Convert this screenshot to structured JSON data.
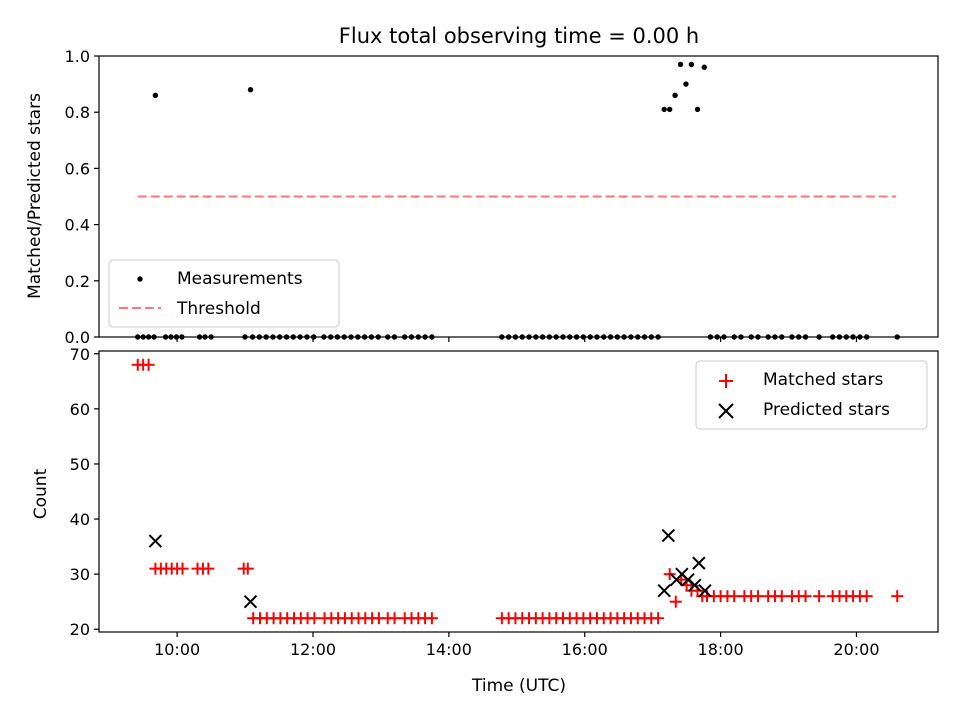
{
  "chart_data": [
    {
      "type": "scatter",
      "title": "Flux total observing time = 0.00 h",
      "xlabel": "",
      "ylabel": "Matched/Predicted stars",
      "ylim": [
        0.0,
        1.0
      ],
      "yticks": [
        0.0,
        0.2,
        0.4,
        0.6,
        0.8,
        1.0
      ],
      "ytick_labels": [
        "0.0",
        "0.2",
        "0.4",
        "0.6",
        "0.8",
        "1.0"
      ],
      "xlim_hours": [
        8.85,
        21.2
      ],
      "legend_position": "lower-left",
      "series": [
        {
          "name": "Measurements",
          "style": "dot",
          "color": "#000000",
          "points": [
            [
              9.68,
              0.86
            ],
            [
              11.08,
              0.88
            ],
            [
              17.17,
              0.81
            ],
            [
              17.25,
              0.81
            ],
            [
              17.33,
              0.86
            ],
            [
              17.41,
              0.97
            ],
            [
              17.49,
              0.9
            ],
            [
              17.57,
              0.97
            ],
            [
              17.66,
              0.81
            ],
            [
              17.76,
              0.96
            ]
          ],
          "zero_times": [
            9.42,
            9.5,
            9.58,
            9.66,
            9.83,
            9.91,
            9.99,
            10.07,
            10.33,
            10.41,
            10.5,
            11.0,
            11.11,
            11.21,
            11.31,
            11.41,
            11.51,
            11.61,
            11.71,
            11.81,
            11.91,
            12.01,
            12.16,
            12.26,
            12.36,
            12.46,
            12.56,
            12.66,
            12.76,
            12.86,
            12.96,
            13.1,
            13.2,
            13.35,
            13.45,
            13.55,
            13.65,
            13.75,
            14.78,
            14.88,
            14.98,
            15.08,
            15.18,
            15.28,
            15.38,
            15.48,
            15.58,
            15.68,
            15.78,
            15.88,
            15.98,
            16.08,
            16.18,
            16.28,
            16.38,
            16.48,
            16.58,
            16.68,
            16.78,
            16.88,
            16.98,
            17.08,
            17.85,
            17.95,
            18.05,
            18.2,
            18.3,
            18.45,
            18.55,
            18.7,
            18.8,
            18.9,
            19.05,
            19.15,
            19.25,
            19.45,
            19.65,
            19.75,
            19.85,
            19.95,
            20.05,
            20.15,
            20.6
          ]
        },
        {
          "name": "Threshold",
          "style": "dashed-line",
          "color": "#ff7777",
          "x": [
            9.42,
            20.58
          ],
          "y": [
            0.5,
            0.5
          ]
        }
      ]
    },
    {
      "type": "scatter",
      "title": "",
      "xlabel": "Time (UTC)",
      "ylabel": "Count",
      "ylim": [
        19.5,
        70.5
      ],
      "yticks": [
        20,
        30,
        40,
        50,
        60,
        70
      ],
      "ytick_labels": [
        "20",
        "30",
        "40",
        "50",
        "60",
        "70"
      ],
      "xlim_hours": [
        8.85,
        21.2
      ],
      "xticks_hours": [
        10,
        12,
        14,
        16,
        18,
        20
      ],
      "xtick_labels": [
        "10:00",
        "12:00",
        "14:00",
        "16:00",
        "18:00",
        "20:00"
      ],
      "legend_position": "upper-right",
      "series": [
        {
          "name": "Matched stars",
          "marker": "plus",
          "color": "#ff0000",
          "points": [
            [
              9.42,
              68
            ],
            [
              9.5,
              68
            ],
            [
              9.58,
              68
            ],
            [
              9.68,
              31
            ],
            [
              9.76,
              31
            ],
            [
              9.84,
              31
            ],
            [
              9.92,
              31
            ],
            [
              10.0,
              31
            ],
            [
              10.08,
              31
            ],
            [
              10.3,
              31
            ],
            [
              10.38,
              31
            ],
            [
              10.46,
              31
            ],
            [
              10.98,
              31
            ],
            [
              11.04,
              31
            ],
            [
              11.12,
              22
            ],
            [
              11.22,
              22
            ],
            [
              11.32,
              22
            ],
            [
              11.42,
              22
            ],
            [
              11.52,
              22
            ],
            [
              11.62,
              22
            ],
            [
              11.72,
              22
            ],
            [
              11.82,
              22
            ],
            [
              11.92,
              22
            ],
            [
              12.02,
              22
            ],
            [
              12.17,
              22
            ],
            [
              12.27,
              22
            ],
            [
              12.37,
              22
            ],
            [
              12.47,
              22
            ],
            [
              12.57,
              22
            ],
            [
              12.67,
              22
            ],
            [
              12.77,
              22
            ],
            [
              12.87,
              22
            ],
            [
              12.97,
              22
            ],
            [
              13.1,
              22
            ],
            [
              13.2,
              22
            ],
            [
              13.35,
              22
            ],
            [
              13.45,
              22
            ],
            [
              13.55,
              22
            ],
            [
              13.65,
              22
            ],
            [
              13.75,
              22
            ],
            [
              14.78,
              22
            ],
            [
              14.88,
              22
            ],
            [
              14.98,
              22
            ],
            [
              15.08,
              22
            ],
            [
              15.18,
              22
            ],
            [
              15.28,
              22
            ],
            [
              15.38,
              22
            ],
            [
              15.48,
              22
            ],
            [
              15.58,
              22
            ],
            [
              15.68,
              22
            ],
            [
              15.78,
              22
            ],
            [
              15.88,
              22
            ],
            [
              15.98,
              22
            ],
            [
              16.08,
              22
            ],
            [
              16.18,
              22
            ],
            [
              16.28,
              22
            ],
            [
              16.38,
              22
            ],
            [
              16.48,
              22
            ],
            [
              16.58,
              22
            ],
            [
              16.68,
              22
            ],
            [
              16.78,
              22
            ],
            [
              16.88,
              22
            ],
            [
              16.98,
              22
            ],
            [
              17.08,
              22
            ],
            [
              17.25,
              30
            ],
            [
              17.34,
              25
            ],
            [
              17.42,
              29
            ],
            [
              17.5,
              28
            ],
            [
              17.57,
              27
            ],
            [
              17.66,
              27
            ],
            [
              17.73,
              26
            ],
            [
              17.8,
              26
            ],
            [
              17.9,
              26
            ],
            [
              18.0,
              26
            ],
            [
              18.1,
              26
            ],
            [
              18.2,
              26
            ],
            [
              18.35,
              26
            ],
            [
              18.45,
              26
            ],
            [
              18.55,
              26
            ],
            [
              18.7,
              26
            ],
            [
              18.8,
              26
            ],
            [
              18.9,
              26
            ],
            [
              19.05,
              26
            ],
            [
              19.15,
              26
            ],
            [
              19.25,
              26
            ],
            [
              19.45,
              26
            ],
            [
              19.65,
              26
            ],
            [
              19.75,
              26
            ],
            [
              19.85,
              26
            ],
            [
              19.95,
              26
            ],
            [
              20.05,
              26
            ],
            [
              20.15,
              26
            ],
            [
              20.6,
              26
            ]
          ]
        },
        {
          "name": "Predicted stars",
          "marker": "x",
          "color": "#000000",
          "points": [
            [
              9.68,
              36
            ],
            [
              11.08,
              25
            ],
            [
              17.17,
              27
            ],
            [
              17.23,
              37
            ],
            [
              17.35,
              29
            ],
            [
              17.43,
              30
            ],
            [
              17.52,
              29
            ],
            [
              17.62,
              28
            ],
            [
              17.68,
              32
            ],
            [
              17.77,
              27
            ]
          ]
        }
      ]
    }
  ]
}
